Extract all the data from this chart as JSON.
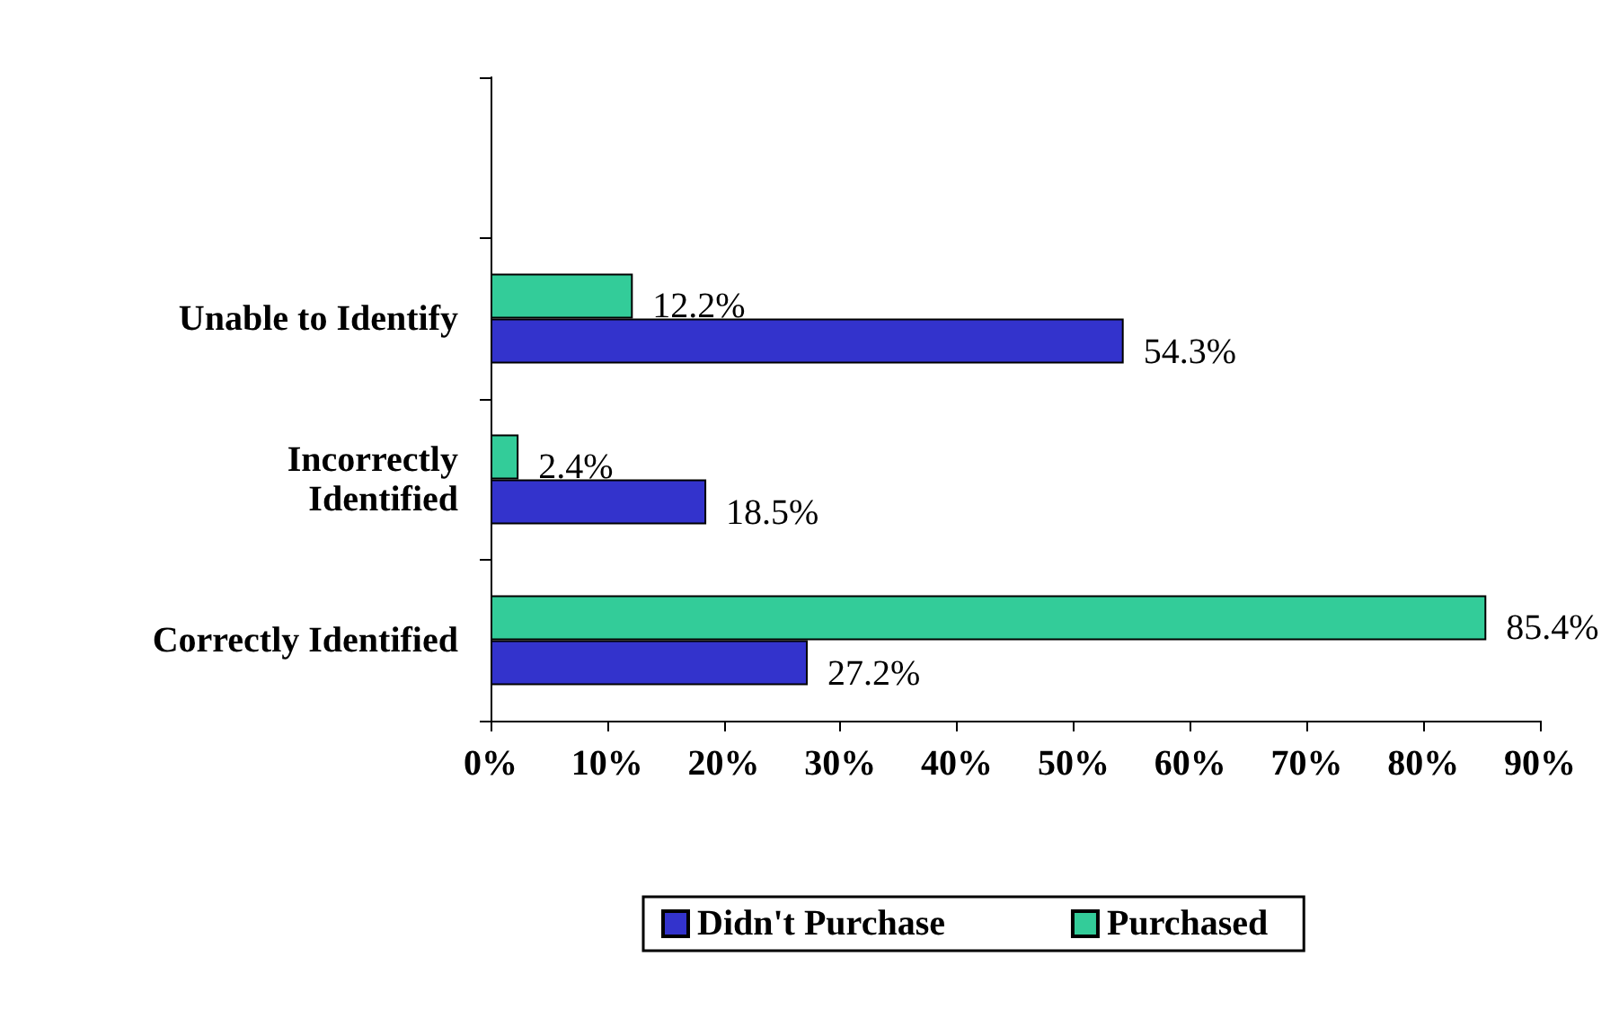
{
  "chart_data": {
    "type": "bar",
    "orientation": "horizontal",
    "categories": [
      null,
      "Unable to Identify",
      "Incorrectly\nIdentified",
      "Correctly Identified"
    ],
    "series": [
      {
        "name": "Didn't Purchase",
        "color": "#3333cc",
        "values": [
          null,
          54.3,
          18.5,
          27.2
        ],
        "value_labels": [
          null,
          "54.3%",
          "18.5%",
          "27.2%"
        ]
      },
      {
        "name": "Purchased",
        "color": "#33cc99",
        "values": [
          null,
          12.2,
          2.4,
          85.4
        ],
        "value_labels": [
          null,
          "12.2%",
          "2.4%",
          "85.4%"
        ]
      }
    ],
    "xlim": [
      0,
      90
    ],
    "xticks": [
      {
        "value": 0,
        "label": "0%"
      },
      {
        "value": 10,
        "label": "10%"
      },
      {
        "value": 20,
        "label": "20%"
      },
      {
        "value": 30,
        "label": "30%"
      },
      {
        "value": 40,
        "label": "40%"
      },
      {
        "value": 50,
        "label": "50%"
      },
      {
        "value": 60,
        "label": "60%"
      },
      {
        "value": 70,
        "label": "70%"
      },
      {
        "value": 80,
        "label": "80%"
      },
      {
        "value": 90,
        "label": "90%"
      }
    ],
    "grid": false,
    "legend": "bottom"
  }
}
